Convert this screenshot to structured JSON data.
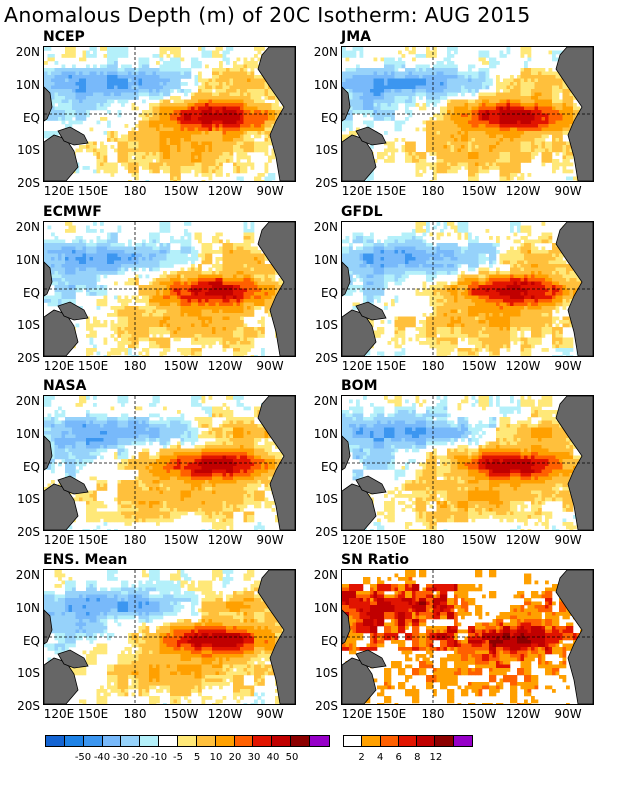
{
  "title": "Anomalous Depth (m) of 20C Isotherm: AUG 2015",
  "panels": [
    {
      "name": "NCEP"
    },
    {
      "name": "JMA"
    },
    {
      "name": "ECMWF"
    },
    {
      "name": "GFDL"
    },
    {
      "name": "NASA"
    },
    {
      "name": "BOM"
    },
    {
      "name": "ENS. Mean"
    },
    {
      "name": "SN Ratio"
    }
  ],
  "axes": {
    "lat_labels": [
      "20N",
      "10N",
      "EQ",
      "10S",
      "20S"
    ],
    "lon_labels": [
      "120E",
      "150E",
      "180",
      "150W",
      "120W",
      "90W"
    ]
  },
  "colorbar_anomaly": {
    "colors": [
      "#1464d2",
      "#1e82e6",
      "#3c96f0",
      "#78b9fa",
      "#96d2fa",
      "#b4f0fa",
      "#ffffff",
      "#ffe878",
      "#ffc03c",
      "#ffa000",
      "#ff6000",
      "#e11400",
      "#c00000",
      "#8c0000",
      "#9600c8"
    ],
    "labels": [
      "-50",
      "-40",
      "-30",
      "-20",
      "-10",
      "-5",
      "5",
      "10",
      "20",
      "30",
      "40",
      "50"
    ]
  },
  "colorbar_sn": {
    "colors": [
      "#ffffff",
      "#ffa000",
      "#ff6000",
      "#e11400",
      "#c00000",
      "#8c0000",
      "#9600c8"
    ],
    "labels": [
      "2",
      "4",
      "6",
      "8",
      "12"
    ]
  },
  "colors": {
    "land": "#666666"
  }
}
